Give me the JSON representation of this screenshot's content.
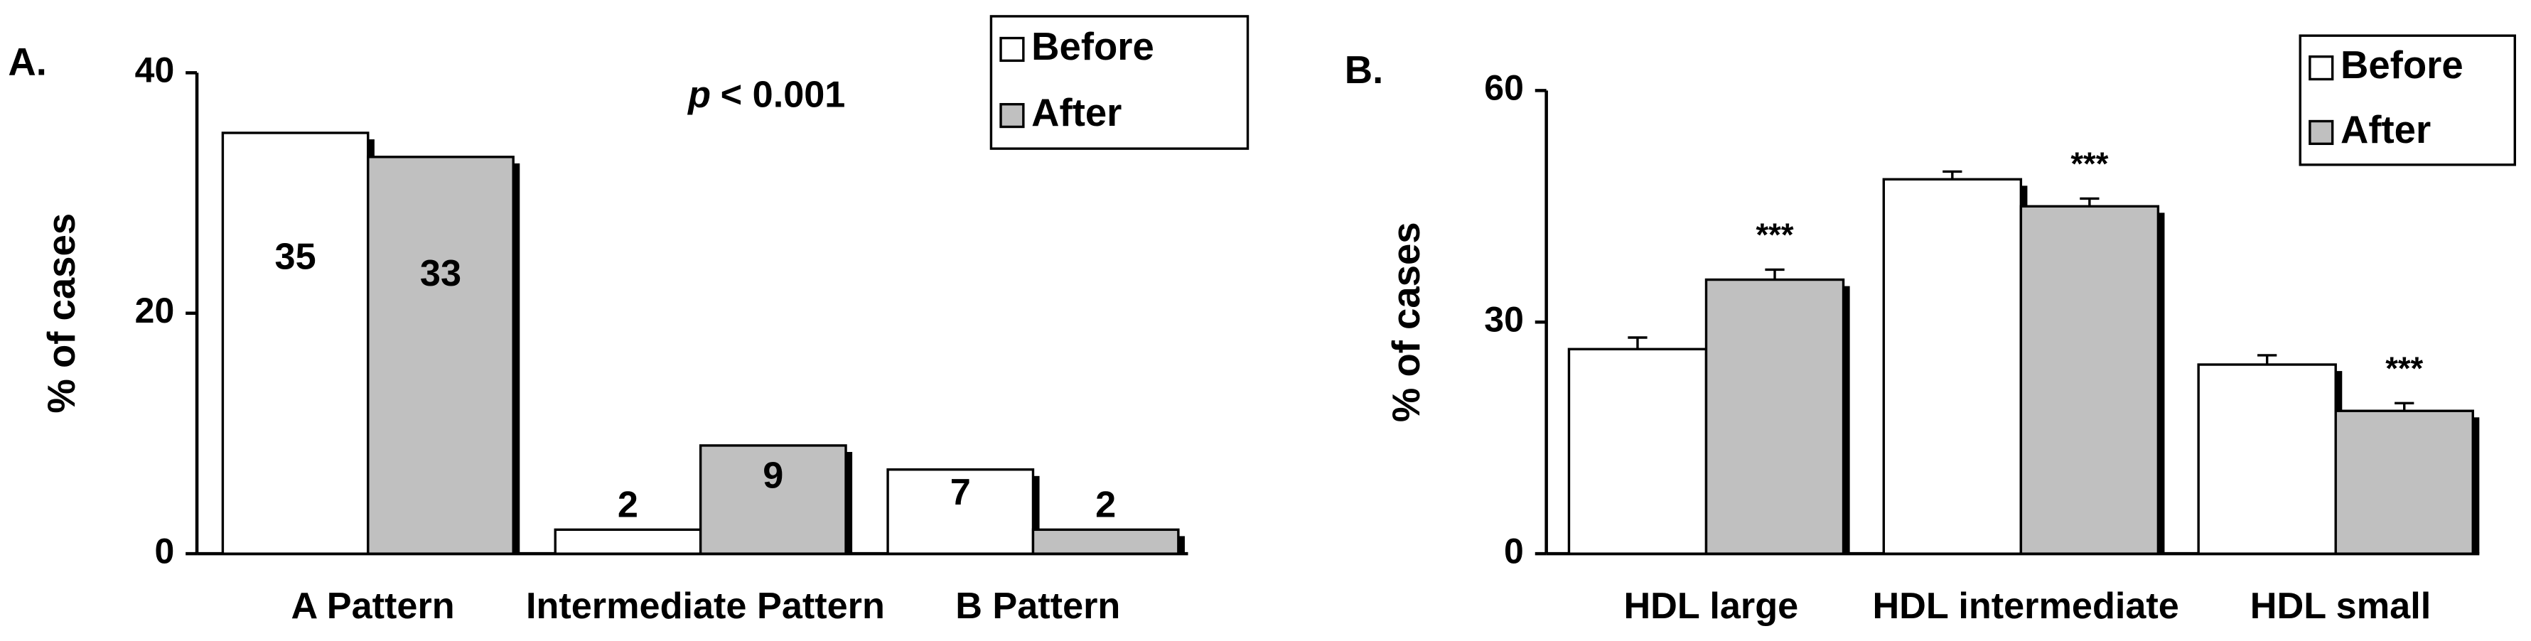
{
  "chart_data": [
    {
      "type": "bar",
      "panel_label": "A.",
      "ylabel": "% of cases",
      "stat_symbol": "p",
      "stat_text": "< 0.001",
      "categories": [
        "A Pattern",
        "Intermediate Pattern",
        "B Pattern"
      ],
      "series": [
        {
          "name": "Before",
          "color": "#ffffff",
          "values": [
            35,
            2,
            7
          ]
        },
        {
          "name": "After",
          "color": "#c0c0c0",
          "values": [
            33,
            9,
            2
          ]
        }
      ],
      "ylim": [
        0,
        40
      ],
      "yticks": [
        0,
        20,
        40
      ],
      "show_value_labels": true
    },
    {
      "type": "bar",
      "panel_label": "B.",
      "ylabel": "% of cases",
      "categories": [
        "HDL large",
        "HDL intermediate",
        "HDL small"
      ],
      "series": [
        {
          "name": "Before",
          "color": "#ffffff",
          "values": [
            26.5,
            48.5,
            24.5
          ],
          "errors": [
            1.5,
            1,
            1.2
          ]
        },
        {
          "name": "After",
          "color": "#c0c0c0",
          "values": [
            35.5,
            45,
            18.5
          ],
          "errors": [
            1.3,
            1,
            1
          ],
          "annotations": [
            "***",
            "***",
            "***"
          ]
        }
      ],
      "ylim": [
        0,
        60
      ],
      "yticks": [
        0,
        30,
        60
      ],
      "show_value_labels": false
    }
  ]
}
